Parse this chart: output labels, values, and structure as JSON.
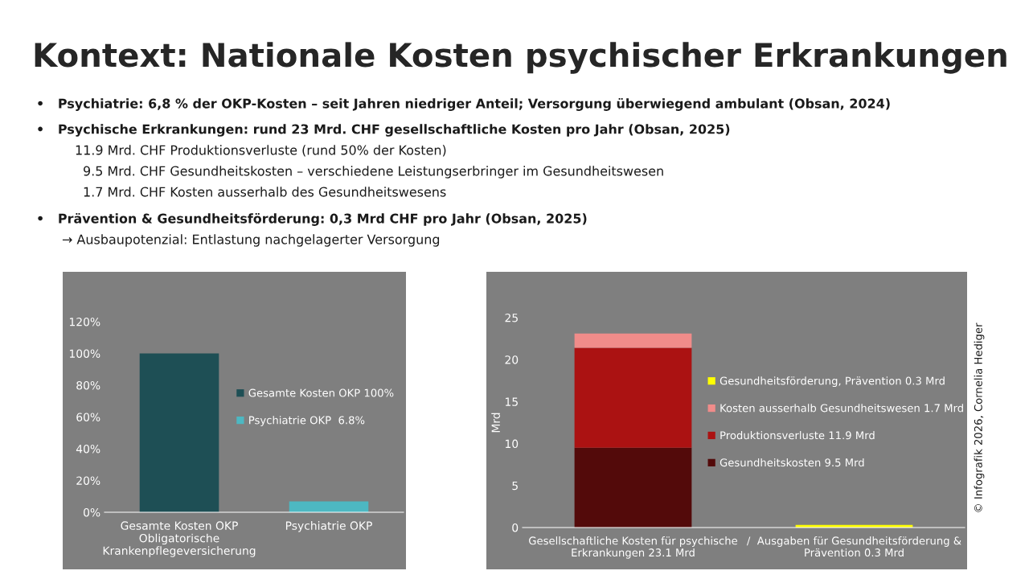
{
  "chart_data": [
    {
      "type": "bar",
      "title": "Kontext: Nationale Kosten psychischer Erkrankungen",
      "annotations": [
        "•   Psychiatrie: 6,8 % der OKP-Kosten – seit Jahren niedriger Anteil; Versorgung überwiegend ambulant (Obsan, 2024)",
        "•   Psychische Erkrankungen: rund 23 Mrd. CHF gesellschaftliche Kosten pro Jahr (Obsan, 2025)",
        "11.9 Mrd. CHF Produktionsverluste (rund 50% der Kosten)",
        "9.5 Mrd. CHF Gesundheitskosten – verschiedene Leistungserbringer im Gesundheitswesen",
        "1.7 Mrd. CHF Kosten ausserhalb des Gesundheitswesens",
        "•   Prävention & Gesundheitsförderung: 0,3 Mrd CHF pro Jahr (Obsan, 2025)",
        "→ Ausbaupotenzial: Entlastung nachgelagerter Versorgung"
      ],
      "categories": [
        "Gesamte Kosten OKP\nObligatorische\nKrankenpflegeversicherung",
        "Psychiatrie OKP"
      ],
      "series": [
        {
          "name": "Gesamte Kosten OKP 100%",
          "color": "#1e4f55",
          "values": [
            100,
            null
          ]
        },
        {
          "name": "Psychiatrie OKP  6.8%",
          "color": "#4db8c2",
          "values": [
            null,
            6.8
          ]
        }
      ],
      "ylim": [
        0,
        120
      ],
      "yticks": [
        {
          "value": 0,
          "label": "0%"
        },
        {
          "value": 20,
          "label": "20%"
        },
        {
          "value": 40,
          "label": "40%"
        },
        {
          "value": 60,
          "label": "60%"
        },
        {
          "value": 80,
          "label": "80%"
        },
        {
          "value": 100,
          "label": "100%"
        },
        {
          "value": 120,
          "label": "120%"
        }
      ],
      "legend": "right",
      "grid": false
    },
    {
      "type": "bar",
      "stacked": true,
      "ylabel": "Mrd",
      "annotations": [
        "© Infografik 2026, Cornelia Hediger"
      ],
      "categories": [
        "Gesellschaftliche Kosten für psychische\nErkrankungen 23.1 Mrd",
        "/  Ausgaben für Gesundheitsförderung &\nPrävention 0.3 Mrd"
      ],
      "series": [
        {
          "name": "Gesundheitskosten 9.5 Mrd",
          "color": "#530a0a",
          "values": [
            9.5,
            null
          ]
        },
        {
          "name": "Produktionsverluste 11.9 Mrd",
          "color": "#ab1212",
          "values": [
            11.9,
            null
          ]
        },
        {
          "name": "Kosten ausserhalb Gesundheitswesen 1.7 Mrd",
          "color": "#f08c8a",
          "values": [
            1.7,
            null
          ]
        },
        {
          "name": "Gesundheitsförderung, Prävention 0.3 Mrd",
          "color": "#ffff00",
          "values": [
            null,
            0.3
          ]
        }
      ],
      "ylim": [
        0,
        25
      ],
      "yticks": [
        0,
        5,
        10,
        15,
        20,
        25
      ],
      "legend": "right",
      "grid": false
    }
  ]
}
